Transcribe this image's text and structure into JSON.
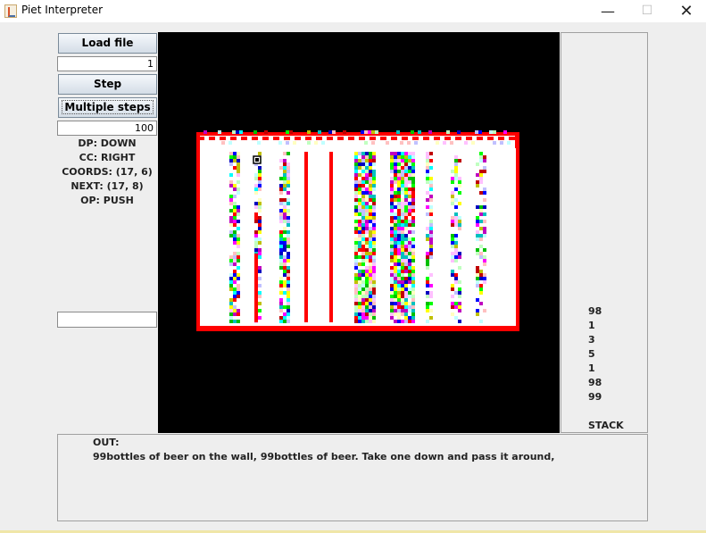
{
  "window": {
    "title": "Piet Interpreter",
    "minimize_icon": "minimize-icon",
    "maximize_icon": "maximize-icon",
    "close_icon": "close-icon"
  },
  "controls": {
    "load_label": "Load file",
    "file_number": "1",
    "step_label": "Step",
    "multi_label": "Multiple steps",
    "steps_count": "100",
    "input_value": ""
  },
  "state": {
    "dp": "DP: DOWN",
    "cc": "CC: RIGHT",
    "coords": "COORDS: (17, 6)",
    "next": "NEXT: (17, 8)",
    "op": "OP: PUSH"
  },
  "stack": {
    "label": "STACK",
    "values": [
      "98",
      "1",
      "3",
      "5",
      "1",
      "98",
      "99"
    ]
  },
  "output": {
    "label": "OUT:",
    "text": "99bottles of beer on the wall, 99bottles of beer. Take one down and pass it around,"
  },
  "colors": {
    "piet_palette": [
      "#ff0000",
      "#ffff00",
      "#00ff00",
      "#00ffff",
      "#0000ff",
      "#ff00ff",
      "#c00000",
      "#c0c000",
      "#00c000",
      "#00c0c0",
      "#0000c0",
      "#c000c0",
      "#ffc0c0",
      "#ffffc0",
      "#c0ffc0",
      "#c0ffff",
      "#c0c0ff",
      "#ffc0ff"
    ],
    "canvas_bg": "#000000",
    "border_red": "#ff0000"
  }
}
